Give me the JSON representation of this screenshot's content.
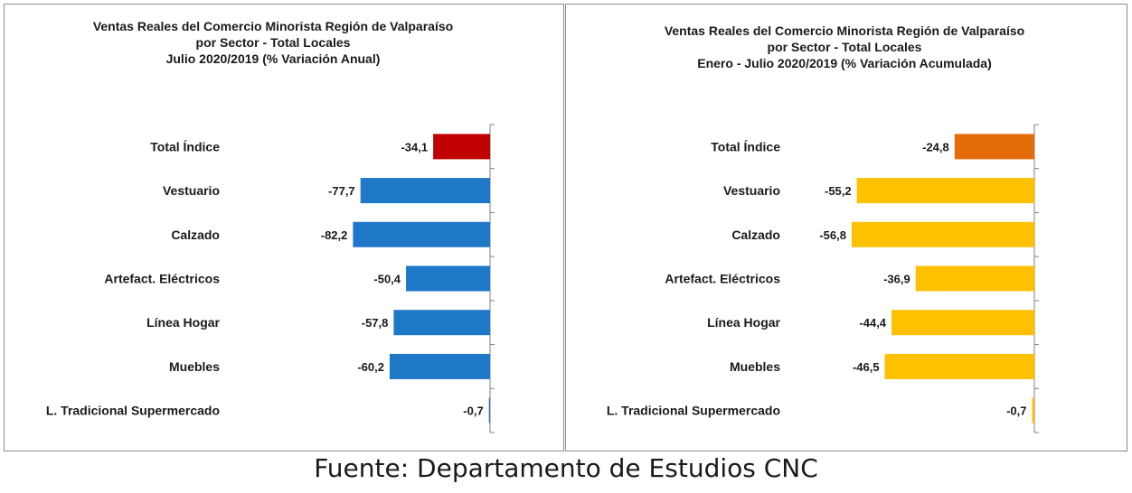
{
  "chart_data": [
    {
      "type": "bar",
      "orientation": "horizontal",
      "title_lines": [
        "Ventas Reales del Comercio Minorista Región de Valparaíso",
        "por Sector - Total Locales",
        "Julio 2020/2019 (% Variación Anual)"
      ],
      "categories": [
        "Total Índice",
        "Vestuario",
        "Calzado",
        "Artefact. Eléctricos",
        "Línea Hogar",
        "Muebles",
        "L. Tradicional Supermercado"
      ],
      "values": [
        -34.1,
        -77.7,
        -82.2,
        -50.4,
        -57.8,
        -60.2,
        -0.7
      ],
      "value_labels": [
        "-34,1",
        "-77,7",
        "-82,2",
        "-50,4",
        "-57,8",
        "-60,2",
        "-0,7"
      ],
      "bar_colors": [
        "#c00000",
        "#1f77c8",
        "#1f77c8",
        "#1f77c8",
        "#1f77c8",
        "#1f77c8",
        "#1f77c8"
      ],
      "xlim": [
        -90,
        0
      ],
      "grid": false,
      "legend": "none"
    },
    {
      "type": "bar",
      "orientation": "horizontal",
      "title_lines": [
        "Ventas Reales del Comercio Minorista Región de Valparaíso",
        "por Sector  - Total Locales",
        "Enero - Julio  2020/2019 (% Variación Acumulada)"
      ],
      "categories": [
        "Total Índice",
        "Vestuario",
        "Calzado",
        "Artefact. Eléctricos",
        "Línea Hogar",
        "Muebles",
        "L. Tradicional Supermercado"
      ],
      "values": [
        -24.8,
        -55.2,
        -56.8,
        -36.9,
        -44.4,
        -46.5,
        -0.7
      ],
      "value_labels": [
        "-24,8",
        "-55,2",
        "-56,8",
        "-36,9",
        "-44,4",
        "-46,5",
        "-0,7"
      ],
      "bar_colors": [
        "#e46c0a",
        "#ffc000",
        "#ffc000",
        "#ffc000",
        "#ffc000",
        "#ffc000",
        "#ffc000"
      ],
      "xlim": [
        -61,
        0
      ],
      "grid": false,
      "legend": "none"
    }
  ],
  "footer": {
    "source": "Fuente: Departamento de Estudios CNC"
  }
}
